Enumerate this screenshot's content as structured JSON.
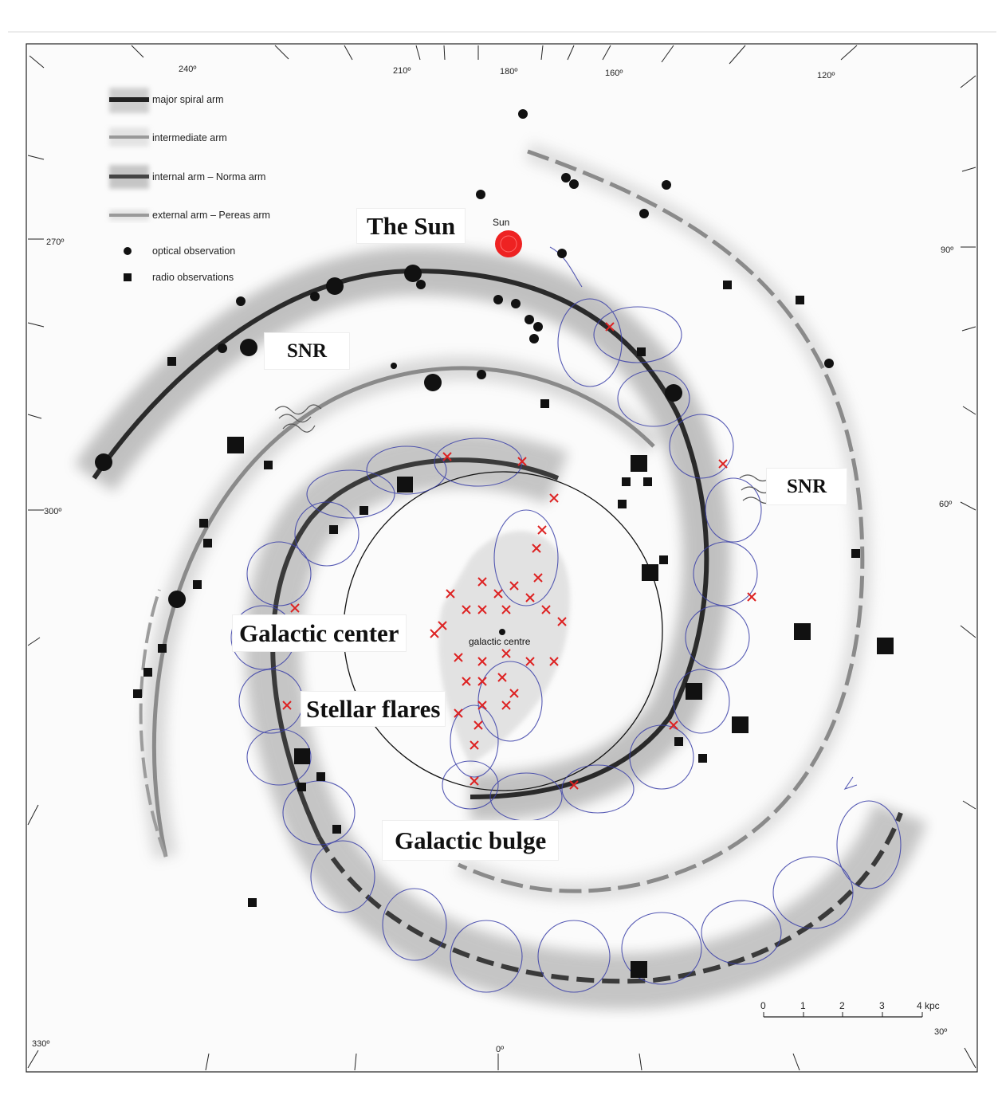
{
  "degree_labels": {
    "d240": "240º",
    "d210": "210º",
    "d180": "180º",
    "d160": "160º",
    "d120": "120º",
    "d270": "270º",
    "d90": "90º",
    "d300": "300º",
    "d60": "60º",
    "d330": "330º",
    "d0": "0º",
    "d30": "30º"
  },
  "legend": {
    "major": "major spiral arm",
    "intermediate": "intermediate arm",
    "internal": "internal arm – Norma arm",
    "external": "external arm – Pereas arm",
    "optical": "optical observation",
    "radio": "radio observations"
  },
  "scale": {
    "ticks": [
      "0",
      "1",
      "2",
      "3",
      "4 kpc"
    ]
  },
  "map_labels": {
    "sun_small": "Sun",
    "galactic_centre_small": "galactic centre"
  },
  "annotations": {
    "the_sun": "The Sun",
    "snr_left": "SNR",
    "snr_right": "SNR",
    "galactic_center": "Galactic center",
    "stellar_flares": "Stellar flares",
    "galactic_bulge": "Galactic bulge"
  },
  "colors": {
    "sun": "#ee2222",
    "star_marks": "#dd2222",
    "loops": "#3a3fa8",
    "arm_dark": "#2a2a2a",
    "arm_grey": "#8a8a8a"
  }
}
